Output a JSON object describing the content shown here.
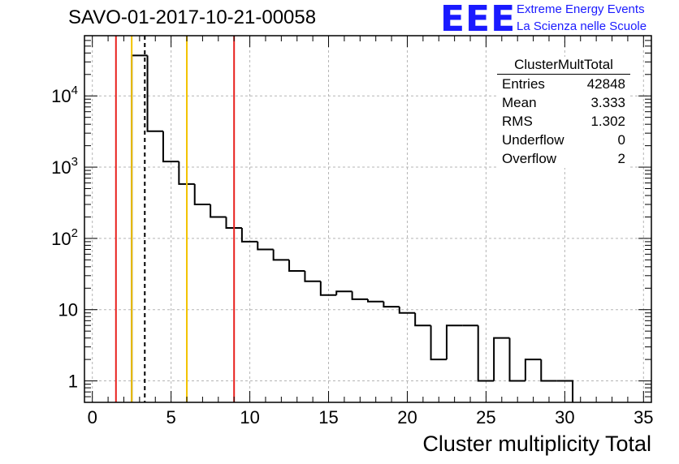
{
  "page": {
    "title": "SAVO-01-2017-10-21-00058",
    "logo_text": "EEE",
    "logo_line1": "Extreme Energy Events",
    "logo_line2": "La Scienza nelle Scuole"
  },
  "stats": {
    "header": "ClusterMultTotal",
    "rows": [
      {
        "label": "Entries",
        "value": "42848"
      },
      {
        "label": "Mean",
        "value": "3.333"
      },
      {
        "label": "RMS",
        "value": "1.302"
      },
      {
        "label": "Underflow",
        "value": "0"
      },
      {
        "label": "Overflow",
        "value": "2"
      }
    ]
  },
  "chart_data": {
    "type": "histogram",
    "title": "SAVO-01-2017-10-21-00058",
    "xlabel": "Cluster multiplicity Total",
    "ylabel": "",
    "xlim": [
      -0.5,
      35.5
    ],
    "ylim": [
      0.5,
      70000
    ],
    "yscale": "log",
    "grid": true,
    "bin_edges_start": 2.5,
    "bin_width": 1,
    "counts": [
      37000,
      3200,
      1200,
      580,
      300,
      200,
      140,
      90,
      70,
      50,
      35,
      25,
      16,
      18,
      14,
      13,
      11,
      9,
      6,
      2,
      6,
      6,
      1,
      4,
      1,
      2,
      1,
      1
    ],
    "x_ticks": [
      "0",
      "5",
      "10",
      "15",
      "20",
      "25",
      "30",
      "35"
    ],
    "x_tick_values": [
      0,
      5,
      10,
      15,
      20,
      25,
      30,
      35
    ],
    "y_ticks": [
      "1",
      "10",
      "10^2",
      "10^3",
      "10^4"
    ],
    "y_tick_values": [
      1,
      10,
      100,
      1000,
      10000
    ],
    "vlines": [
      {
        "x": 1.5,
        "color": "#e8211e",
        "style": "solid"
      },
      {
        "x": 2.5,
        "color": "#f2c200",
        "style": "solid"
      },
      {
        "x": 3.33,
        "color": "#000000",
        "style": "dashed"
      },
      {
        "x": 6.0,
        "color": "#f2c200",
        "style": "solid"
      },
      {
        "x": 9.0,
        "color": "#e8211e",
        "style": "solid"
      }
    ]
  }
}
